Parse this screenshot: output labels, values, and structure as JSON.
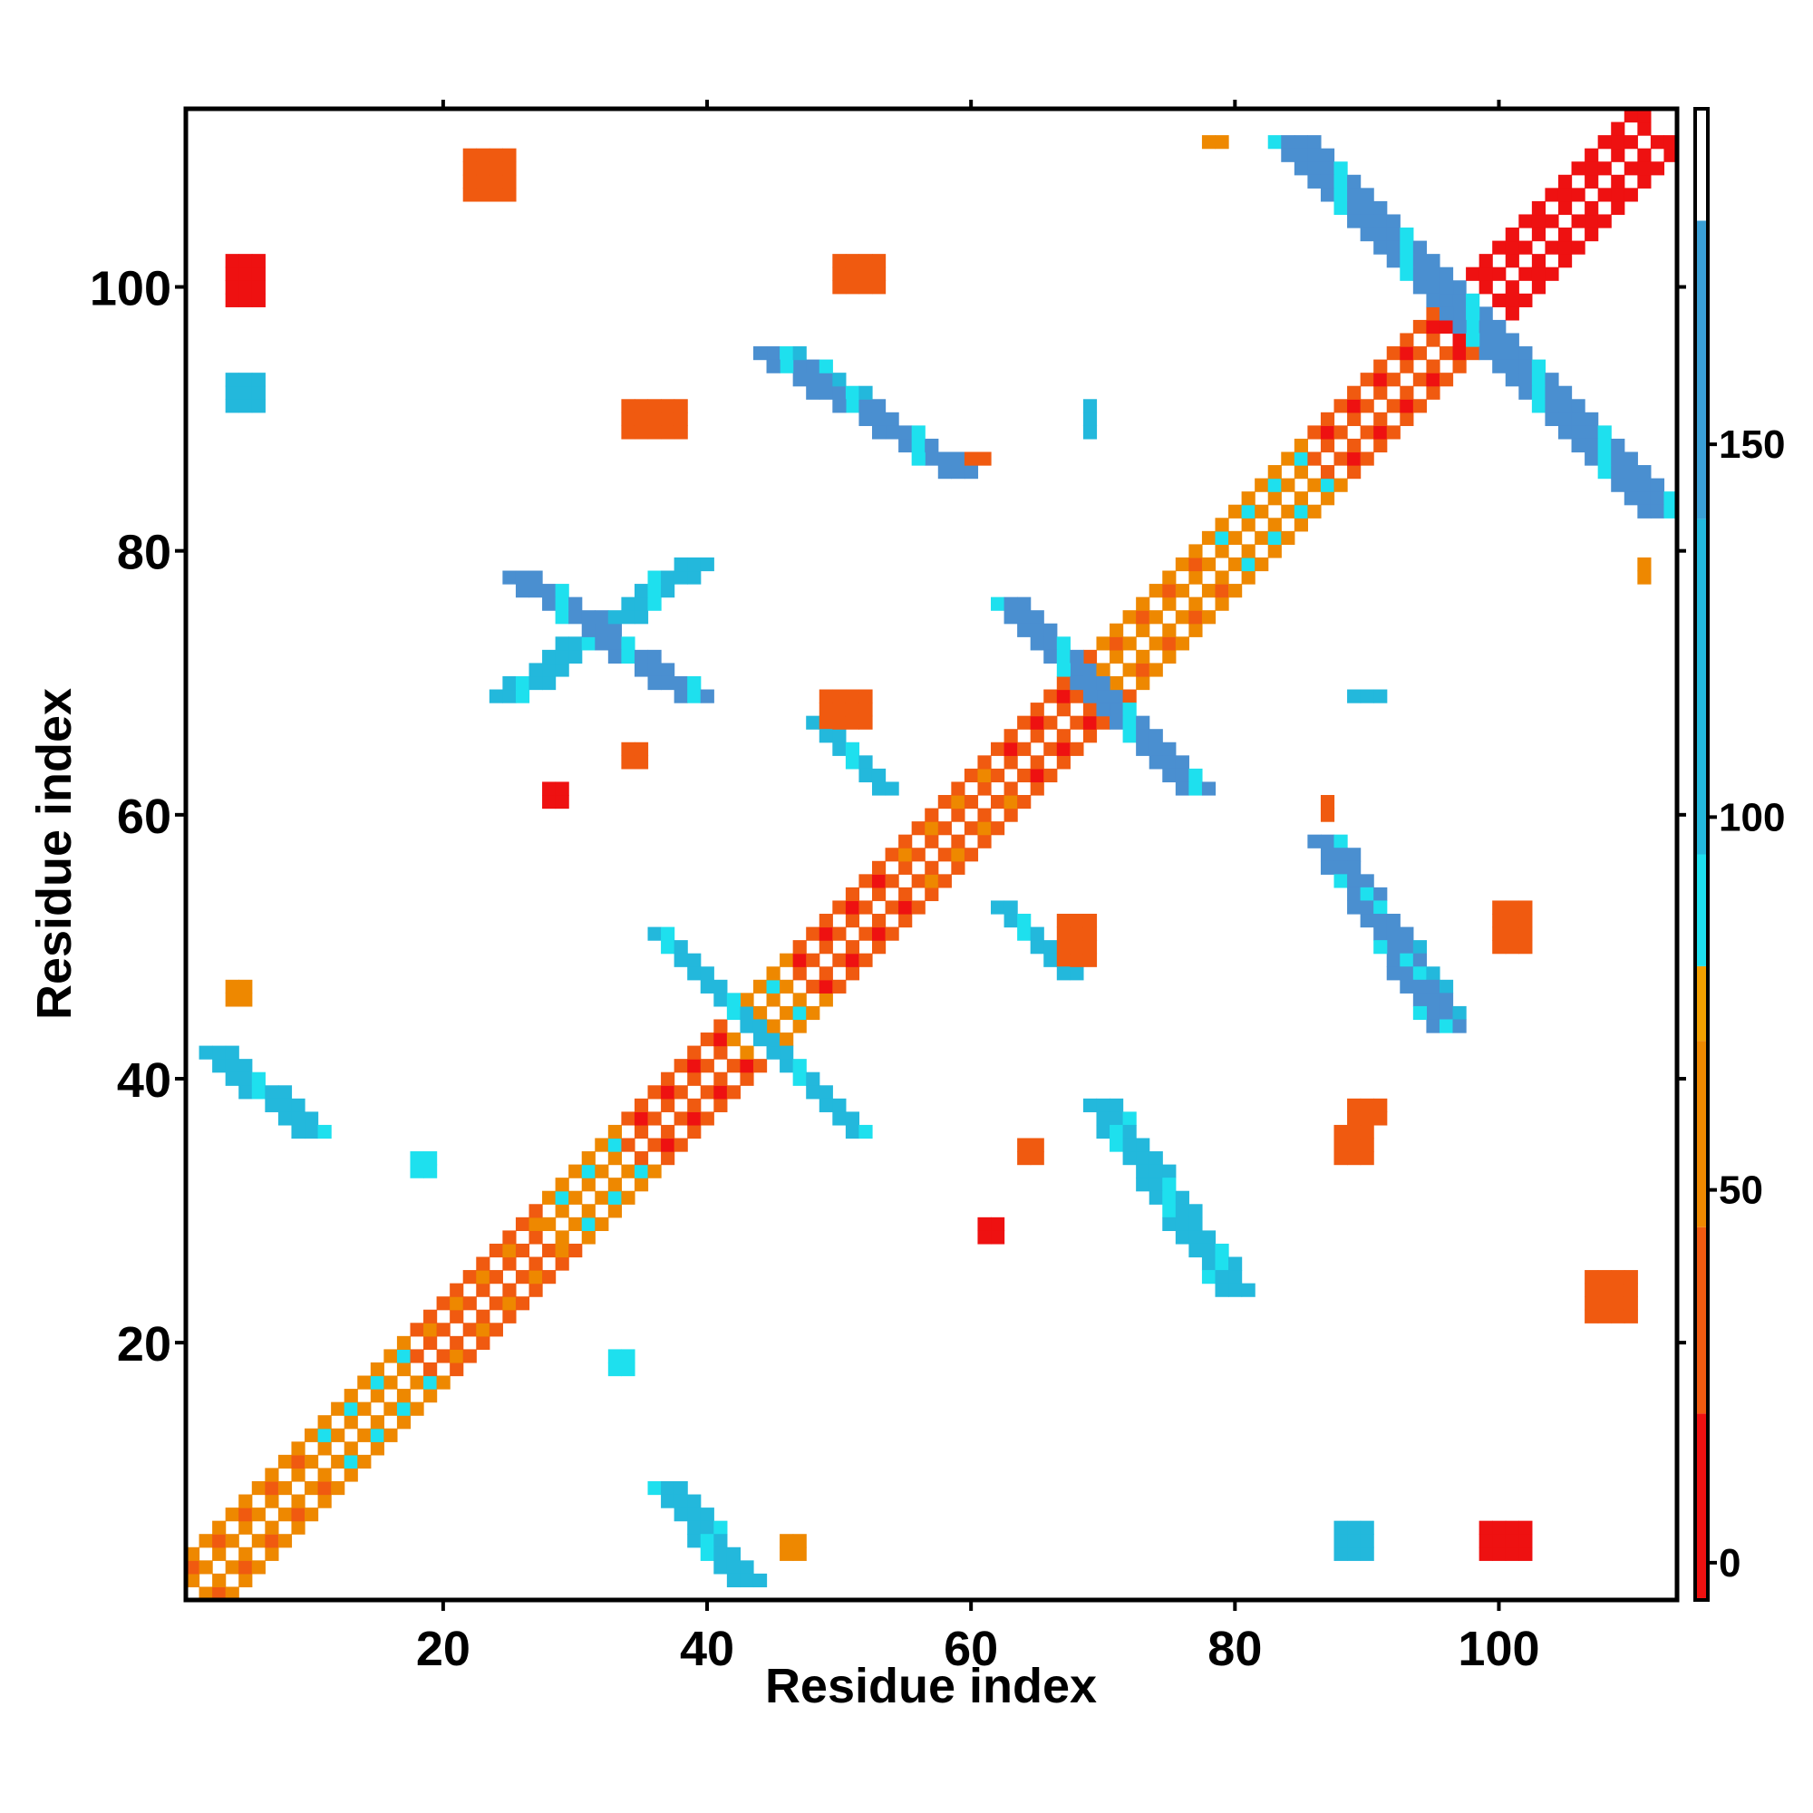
{
  "chart_data": {
    "type": "heatmap",
    "xlabel": "Residue index",
    "ylabel": "Residue index",
    "xlim": [
      1,
      113
    ],
    "ylim": [
      1,
      113
    ],
    "x_ticks": [
      "20",
      "40",
      "60",
      "80",
      "100"
    ],
    "x_tick_values": [
      20,
      40,
      60,
      80,
      100
    ],
    "y_ticks": [
      "20",
      "40",
      "60",
      "80",
      "100"
    ],
    "y_tick_values": [
      20,
      40,
      60,
      80,
      100
    ],
    "grid": false,
    "symmetric": true,
    "colorbar": {
      "range": [
        -5,
        195
      ],
      "ticks": [
        "0",
        "50",
        "100",
        "150"
      ],
      "tick_values": [
        0,
        50,
        100,
        150
      ],
      "segments": [
        {
          "from": -5,
          "to": 20,
          "color": "#ee1111"
        },
        {
          "from": 20,
          "to": 45,
          "color": "#f05a10"
        },
        {
          "from": 45,
          "to": 70,
          "color": "#ee8800"
        },
        {
          "from": 70,
          "to": 80,
          "color": "#f2a000"
        },
        {
          "from": 80,
          "to": 95,
          "color": "#1ee0ee"
        },
        {
          "from": 95,
          "to": 140,
          "color": "#23b8dc"
        },
        {
          "from": 140,
          "to": 180,
          "color": "#3a9fd6"
        },
        {
          "from": 180,
          "to": 195,
          "color": "#ffffff"
        }
      ]
    },
    "colors": {
      "red": "#ee1111",
      "orange_red": "#f05a10",
      "orange": "#ee8800",
      "cyan": "#1ee0ee",
      "light_blue": "#23b8dc",
      "steel_blue": "#4a8fd0"
    },
    "diagonal_band": [
      {
        "from": 1,
        "to": 10,
        "near": "orange_red",
        "far": "orange"
      },
      {
        "from": 10,
        "to": 18,
        "near": "cyan",
        "far": "orange"
      },
      {
        "from": 18,
        "to": 28,
        "near": "orange",
        "far": "orange_red"
      },
      {
        "from": 28,
        "to": 34,
        "near": "cyan",
        "far": "orange"
      },
      {
        "from": 34,
        "to": 42,
        "near": "red",
        "far": "orange_red"
      },
      {
        "from": 42,
        "to": 47,
        "near": "cyan",
        "far": "orange"
      },
      {
        "from": 47,
        "to": 54,
        "near": "red",
        "far": "orange_red"
      },
      {
        "from": 54,
        "to": 62,
        "near": "orange",
        "far": "orange_red"
      },
      {
        "from": 62,
        "to": 70,
        "near": "red",
        "far": "orange_red"
      },
      {
        "from": 70,
        "to": 78,
        "near": "orange_red",
        "far": "orange"
      },
      {
        "from": 78,
        "to": 86,
        "near": "cyan",
        "far": "orange"
      },
      {
        "from": 86,
        "to": 96,
        "near": "red",
        "far": "orange_red"
      },
      {
        "from": 96,
        "to": 112,
        "near": "red",
        "far": "red"
      }
    ],
    "strands": [
      {
        "x1": 36,
        "y1": 9,
        "x2": 42,
        "y2": 2,
        "width": 3,
        "color": "light_blue"
      },
      {
        "x1": 2,
        "y1": 42,
        "x2": 9,
        "y2": 36,
        "width": 3,
        "color": "light_blue"
      },
      {
        "x1": 69,
        "y1": 38,
        "x2": 79,
        "y2": 24,
        "width": 3,
        "color": "light_blue"
      },
      {
        "x1": 24,
        "y1": 69,
        "x2": 38,
        "y2": 79,
        "width": 3,
        "color": "light_blue"
      },
      {
        "x1": 36,
        "y1": 51,
        "x2": 51,
        "y2": 36,
        "width": 2,
        "color": "light_blue"
      },
      {
        "x1": 62,
        "y1": 76,
        "x2": 76,
        "y2": 62,
        "width": 3,
        "color": "steel_blue"
      },
      {
        "x1": 86,
        "y1": 58,
        "x2": 95,
        "y2": 45,
        "width": 3,
        "color": "light_blue"
      },
      {
        "x1": 58,
        "y1": 86,
        "x2": 45,
        "y2": 95,
        "width": 3,
        "color": "light_blue"
      },
      {
        "x1": 44,
        "y1": 95,
        "x2": 58,
        "y2": 86,
        "width": 3,
        "color": "steel_blue"
      },
      {
        "x1": 95,
        "y1": 44,
        "x2": 86,
        "y2": 58,
        "width": 3,
        "color": "steel_blue"
      },
      {
        "x1": 83,
        "y1": 111,
        "x2": 111,
        "y2": 83,
        "width": 4,
        "color": "steel_blue"
      },
      {
        "x1": 25,
        "y1": 78,
        "x2": 38,
        "y2": 69,
        "width": 3,
        "color": "steel_blue"
      },
      {
        "x1": 48,
        "y1": 67,
        "x2": 53,
        "y2": 62,
        "width": 2,
        "color": "light_blue"
      },
      {
        "x1": 62,
        "y1": 53,
        "x2": 67,
        "y2": 48,
        "width": 2,
        "color": "light_blue"
      }
    ],
    "patches": [
      {
        "x": 22,
        "y": 107,
        "w": 4,
        "h": 4,
        "color": "orange_red"
      },
      {
        "x": 107,
        "y": 22,
        "w": 4,
        "h": 4,
        "color": "orange_red"
      },
      {
        "x": 4,
        "y": 99,
        "w": 3,
        "h": 4,
        "color": "red"
      },
      {
        "x": 99,
        "y": 4,
        "w": 4,
        "h": 3,
        "color": "red"
      },
      {
        "x": 50,
        "y": 100,
        "w": 4,
        "h": 3,
        "color": "orange_red"
      },
      {
        "x": 100,
        "y": 50,
        "w": 3,
        "h": 4,
        "color": "orange_red"
      },
      {
        "x": 4,
        "y": 91,
        "w": 3,
        "h": 3,
        "color": "light_blue"
      },
      {
        "x": 88,
        "y": 4,
        "w": 3,
        "h": 3,
        "color": "light_blue"
      },
      {
        "x": 34,
        "y": 89,
        "w": 3,
        "h": 3,
        "color": "orange_red"
      },
      {
        "x": 88,
        "y": 34,
        "w": 3,
        "h": 3,
        "color": "orange_red"
      },
      {
        "x": 49,
        "y": 67,
        "w": 4,
        "h": 3,
        "color": "orange_red"
      },
      {
        "x": 67,
        "y": 49,
        "w": 3,
        "h": 4,
        "color": "orange_red"
      },
      {
        "x": 34,
        "y": 64,
        "w": 2,
        "h": 2,
        "color": "orange_red"
      },
      {
        "x": 64,
        "y": 34,
        "w": 2,
        "h": 2,
        "color": "orange_red"
      },
      {
        "x": 28,
        "y": 61,
        "w": 2,
        "h": 2,
        "color": "red"
      },
      {
        "x": 61,
        "y": 28,
        "w": 2,
        "h": 2,
        "color": "red"
      },
      {
        "x": 18,
        "y": 33,
        "w": 2,
        "h": 2,
        "color": "cyan"
      },
      {
        "x": 33,
        "y": 18,
        "w": 2,
        "h": 2,
        "color": "cyan"
      },
      {
        "x": 4,
        "y": 46,
        "w": 2,
        "h": 2,
        "color": "orange"
      },
      {
        "x": 46,
        "y": 4,
        "w": 2,
        "h": 2,
        "color": "orange"
      },
      {
        "x": 78,
        "y": 111,
        "w": 2,
        "h": 1,
        "color": "orange"
      },
      {
        "x": 111,
        "y": 78,
        "w": 1,
        "h": 2,
        "color": "orange"
      },
      {
        "x": 60,
        "y": 87,
        "w": 2,
        "h": 1,
        "color": "orange_red"
      },
      {
        "x": 87,
        "y": 60,
        "w": 1,
        "h": 2,
        "color": "orange_red"
      },
      {
        "x": 89,
        "y": 37,
        "w": 3,
        "h": 2,
        "color": "orange_red"
      },
      {
        "x": 37,
        "y": 89,
        "w": 2,
        "h": 3,
        "color": "orange_red"
      },
      {
        "x": 69,
        "y": 89,
        "w": 1,
        "h": 3,
        "color": "light_blue"
      },
      {
        "x": 89,
        "y": 69,
        "w": 3,
        "h": 1,
        "color": "light_blue"
      }
    ]
  }
}
